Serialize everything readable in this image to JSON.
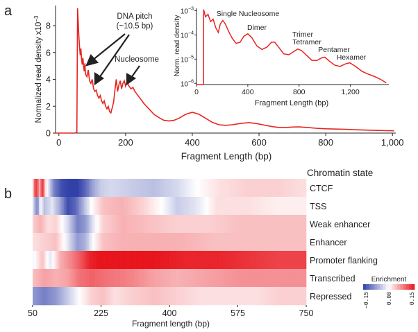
{
  "panels": {
    "a_label": "a",
    "b_label": "b"
  },
  "chart_data": [
    {
      "type": "line",
      "ylabel": "Normalized read density x10",
      "ylabel_exp": "−3",
      "xlabel": "Fragment Length (bp)",
      "xlim": [
        -10,
        1010
      ],
      "ylim": [
        0,
        9.5
      ],
      "xticks": [
        0,
        200,
        400,
        600,
        800,
        1000
      ],
      "xtick_labels": [
        "0",
        "200",
        "400",
        "600",
        "800",
        "1,000"
      ],
      "yticks": [
        0,
        2,
        4,
        6,
        8
      ],
      "ytick_labels": [
        "0",
        "2",
        "4",
        "6",
        "8"
      ],
      "color": "#e8231e",
      "annotations": [
        {
          "text": "DNA pitch",
          "x": 78,
          "y": 5.2
        },
        {
          "text": "(~10.5 bp)",
          "x": 98,
          "y": 4.3
        },
        {
          "text": "Nucleosome",
          "x": 220,
          "y": 3.3
        }
      ],
      "series": [
        {
          "values": [
            [
              -10,
              0
            ],
            [
              20,
              0
            ],
            [
              48,
              0
            ],
            [
              54,
              0.05
            ],
            [
              56,
              9.3
            ],
            [
              60,
              7.2
            ],
            [
              62,
              6.4
            ],
            [
              64,
              5.8
            ],
            [
              66,
              6.3
            ],
            [
              68,
              5.5
            ],
            [
              70,
              5.1
            ],
            [
              72,
              5.6
            ],
            [
              74,
              5.0
            ],
            [
              76,
              4.6
            ],
            [
              78,
              5.2
            ],
            [
              80,
              4.4
            ],
            [
              84,
              4.2
            ],
            [
              88,
              4.7
            ],
            [
              92,
              3.9
            ],
            [
              96,
              3.7
            ],
            [
              100,
              4.0
            ],
            [
              104,
              3.3
            ],
            [
              108,
              3.1
            ],
            [
              112,
              3.2
            ],
            [
              116,
              2.8
            ],
            [
              120,
              2.6
            ],
            [
              124,
              2.8
            ],
            [
              128,
              2.4
            ],
            [
              132,
              2.2
            ],
            [
              136,
              2.4
            ],
            [
              140,
              2.0
            ],
            [
              144,
              1.8
            ],
            [
              148,
              2.0
            ],
            [
              152,
              1.6
            ],
            [
              156,
              1.5
            ],
            [
              160,
              1.9
            ],
            [
              164,
              2.3
            ],
            [
              168,
              3.2
            ],
            [
              172,
              4.0
            ],
            [
              176,
              3.1
            ],
            [
              180,
              3.6
            ],
            [
              184,
              3.9
            ],
            [
              188,
              3.3
            ],
            [
              192,
              3.7
            ],
            [
              196,
              3.9
            ],
            [
              200,
              3.5
            ],
            [
              204,
              3.8
            ],
            [
              210,
              3.5
            ],
            [
              216,
              3.3
            ],
            [
              222,
              3.4
            ],
            [
              228,
              3.1
            ],
            [
              240,
              2.7
            ],
            [
              255,
              2.2
            ],
            [
              270,
              1.8
            ],
            [
              285,
              1.4
            ],
            [
              300,
              1.15
            ],
            [
              315,
              0.95
            ],
            [
              330,
              0.9
            ],
            [
              345,
              0.95
            ],
            [
              360,
              1.1
            ],
            [
              380,
              1.4
            ],
            [
              400,
              1.55
            ],
            [
              420,
              1.4
            ],
            [
              440,
              1.1
            ],
            [
              460,
              0.8
            ],
            [
              480,
              0.62
            ],
            [
              500,
              0.58
            ],
            [
              520,
              0.62
            ],
            [
              545,
              0.72
            ],
            [
              570,
              0.78
            ],
            [
              590,
              0.72
            ],
            [
              615,
              0.6
            ],
            [
              640,
              0.48
            ],
            [
              660,
              0.42
            ],
            [
              680,
              0.42
            ],
            [
              700,
              0.45
            ],
            [
              720,
              0.46
            ],
            [
              745,
              0.42
            ],
            [
              770,
              0.36
            ],
            [
              800,
              0.32
            ],
            [
              830,
              0.3
            ],
            [
              860,
              0.28
            ],
            [
              890,
              0.25
            ],
            [
              920,
              0.22
            ],
            [
              950,
              0.2
            ],
            [
              980,
              0.18
            ],
            [
              1005,
              0.17
            ]
          ]
        }
      ]
    },
    {
      "type": "line",
      "ylabel": "Norm. read density",
      "xlabel": "Fragment Length (bp)",
      "xlim": [
        0,
        1500
      ],
      "ylim": [
        -6.05,
        -2.9
      ],
      "y_scale": "log",
      "xticks": [
        0,
        400,
        800,
        1200
      ],
      "xtick_labels": [
        "0",
        "400",
        "800",
        "1,200"
      ],
      "yticks": [
        -3,
        -4,
        -5,
        -6
      ],
      "ytick_labels": [
        "10",
        "10",
        "10",
        "10"
      ],
      "ytick_exponents": [
        "−3",
        "−4",
        "−5",
        "−6"
      ],
      "color": "#e8231e",
      "annotations": [
        {
          "text": "Single Nucleosome",
          "x": 200,
          "y": -3.5
        },
        {
          "text": "Dimer",
          "x": 400,
          "y": -3.9
        },
        {
          "text": "Trimer",
          "x": 600,
          "y": -4.25
        },
        {
          "text": "Tetramer",
          "x": 800,
          "y": -4.55
        },
        {
          "text": "Pentamer",
          "x": 1000,
          "y": -4.9
        },
        {
          "text": "Hexamer",
          "x": 1200,
          "y": -5.2
        }
      ],
      "series": [
        {
          "values": [
            [
              0,
              -6.05
            ],
            [
              55,
              -6.05
            ],
            [
              56,
              -2.95
            ],
            [
              70,
              -3.25
            ],
            [
              90,
              -3.15
            ],
            [
              110,
              -3.45
            ],
            [
              130,
              -3.35
            ],
            [
              150,
              -3.7
            ],
            [
              170,
              -3.9
            ],
            [
              185,
              -3.55
            ],
            [
              205,
              -3.4
            ],
            [
              225,
              -3.55
            ],
            [
              250,
              -3.85
            ],
            [
              280,
              -4.15
            ],
            [
              310,
              -4.35
            ],
            [
              340,
              -4.3
            ],
            [
              370,
              -4.05
            ],
            [
              400,
              -3.95
            ],
            [
              430,
              -4.1
            ],
            [
              470,
              -4.45
            ],
            [
              510,
              -4.6
            ],
            [
              550,
              -4.5
            ],
            [
              585,
              -4.3
            ],
            [
              610,
              -4.3
            ],
            [
              640,
              -4.5
            ],
            [
              680,
              -4.78
            ],
            [
              720,
              -4.82
            ],
            [
              760,
              -4.68
            ],
            [
              790,
              -4.58
            ],
            [
              820,
              -4.65
            ],
            [
              860,
              -4.85
            ],
            [
              900,
              -5.05
            ],
            [
              940,
              -5.05
            ],
            [
              975,
              -4.95
            ],
            [
              1000,
              -4.92
            ],
            [
              1040,
              -5.1
            ],
            [
              1080,
              -5.25
            ],
            [
              1120,
              -5.3
            ],
            [
              1160,
              -5.2
            ],
            [
              1195,
              -5.15
            ],
            [
              1240,
              -5.3
            ],
            [
              1290,
              -5.5
            ],
            [
              1340,
              -5.62
            ],
            [
              1390,
              -5.72
            ],
            [
              1440,
              -5.85
            ],
            [
              1480,
              -5.98
            ]
          ]
        }
      ]
    },
    {
      "type": "heatmap",
      "title": "Chromatin state",
      "xlabel": "Fragment length (bp)",
      "xlim": [
        50,
        750
      ],
      "xticks": [
        50,
        225,
        400,
        575,
        750
      ],
      "xtick_labels": [
        "50",
        "225",
        "400",
        "575",
        "750"
      ],
      "rows": [
        "CTCF",
        "TSS",
        "Weak enhancer",
        "Enhancer",
        "Promoter flanking",
        "Transcribed",
        "Repressed"
      ],
      "legend": {
        "title": "Enrichment",
        "range": [
          -0.15,
          0.15
        ],
        "tick_labels": [
          "−0.15",
          "0.00",
          "0.15"
        ],
        "low_color": "#3140a8",
        "mid_color": "#ffffff",
        "high_color": "#e8141c"
      },
      "profiles": [
        [
          [
            50,
            0.02
          ],
          [
            58,
            0.14
          ],
          [
            68,
            0.05
          ],
          [
            75,
            0.14
          ],
          [
            82,
            0.03
          ],
          [
            92,
            -0.03
          ],
          [
            105,
            -0.1
          ],
          [
            125,
            -0.14
          ],
          [
            145,
            -0.15
          ],
          [
            165,
            -0.15
          ],
          [
            185,
            -0.12
          ],
          [
            205,
            -0.07
          ],
          [
            225,
            -0.04
          ],
          [
            250,
            -0.03
          ],
          [
            300,
            -0.04
          ],
          [
            360,
            -0.05
          ],
          [
            420,
            -0.03
          ],
          [
            470,
            0.0
          ],
          [
            530,
            0.02
          ],
          [
            600,
            0.03
          ],
          [
            680,
            0.03
          ],
          [
            750,
            0.02
          ]
        ],
        [
          [
            50,
            -0.02
          ],
          [
            62,
            -0.1
          ],
          [
            70,
            0.0
          ],
          [
            80,
            -0.05
          ],
          [
            100,
            -0.02
          ],
          [
            120,
            -0.07
          ],
          [
            140,
            -0.14
          ],
          [
            160,
            -0.12
          ],
          [
            180,
            -0.06
          ],
          [
            200,
            0.0
          ],
          [
            230,
            0.04
          ],
          [
            280,
            0.05
          ],
          [
            330,
            0.03
          ],
          [
            380,
            0.0
          ],
          [
            420,
            -0.04
          ],
          [
            470,
            -0.02
          ],
          [
            520,
            0.02
          ],
          [
            600,
            0.02
          ],
          [
            680,
            0.01
          ],
          [
            750,
            0.01
          ]
        ],
        [
          [
            50,
            0.03
          ],
          [
            70,
            0.05
          ],
          [
            90,
            0.02
          ],
          [
            110,
            0.03
          ],
          [
            140,
            -0.03
          ],
          [
            165,
            -0.1
          ],
          [
            185,
            -0.08
          ],
          [
            205,
            -0.02
          ],
          [
            230,
            0.03
          ],
          [
            280,
            0.05
          ],
          [
            350,
            0.04
          ],
          [
            420,
            0.03
          ],
          [
            500,
            0.03
          ],
          [
            580,
            0.04
          ],
          [
            660,
            0.04
          ],
          [
            750,
            0.04
          ]
        ],
        [
          [
            50,
            0.02
          ],
          [
            80,
            0.03
          ],
          [
            110,
            0.04
          ],
          [
            140,
            -0.02
          ],
          [
            165,
            -0.08
          ],
          [
            185,
            -0.06
          ],
          [
            205,
            0.0
          ],
          [
            230,
            0.04
          ],
          [
            280,
            0.05
          ],
          [
            350,
            0.05
          ],
          [
            430,
            0.05
          ],
          [
            520,
            0.04
          ],
          [
            620,
            0.04
          ],
          [
            750,
            0.04
          ]
        ],
        [
          [
            50,
            -0.01
          ],
          [
            75,
            0.04
          ],
          [
            95,
            -0.02
          ],
          [
            120,
            0.05
          ],
          [
            150,
            0.08
          ],
          [
            175,
            0.11
          ],
          [
            195,
            0.14
          ],
          [
            220,
            0.15
          ],
          [
            280,
            0.15
          ],
          [
            360,
            0.15
          ],
          [
            440,
            0.14
          ],
          [
            520,
            0.14
          ],
          [
            600,
            0.13
          ],
          [
            680,
            0.12
          ],
          [
            750,
            0.12
          ]
        ],
        [
          [
            50,
            0.04
          ],
          [
            80,
            0.06
          ],
          [
            110,
            0.05
          ],
          [
            140,
            0.06
          ],
          [
            170,
            0.09
          ],
          [
            200,
            0.1
          ],
          [
            240,
            0.09
          ],
          [
            300,
            0.08
          ],
          [
            360,
            0.06
          ],
          [
            420,
            0.05
          ],
          [
            500,
            0.06
          ],
          [
            580,
            0.07
          ],
          [
            660,
            0.07
          ],
          [
            750,
            0.07
          ]
        ],
        [
          [
            50,
            -0.08
          ],
          [
            80,
            -0.1
          ],
          [
            110,
            -0.08
          ],
          [
            140,
            -0.04
          ],
          [
            170,
            0.0
          ],
          [
            200,
            0.03
          ],
          [
            230,
            0.04
          ],
          [
            260,
            0.02
          ],
          [
            300,
            0.03
          ],
          [
            360,
            0.04
          ],
          [
            420,
            0.03
          ],
          [
            480,
            0.02
          ],
          [
            550,
            0.02
          ],
          [
            620,
            0.02
          ],
          [
            680,
            0.03
          ],
          [
            750,
            0.03
          ]
        ]
      ]
    }
  ]
}
